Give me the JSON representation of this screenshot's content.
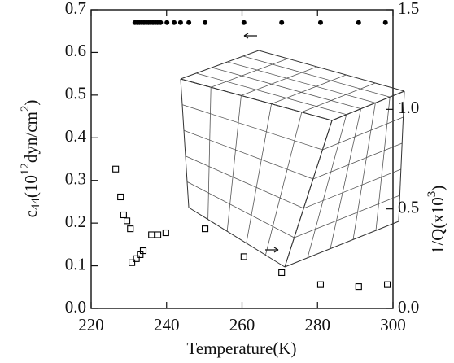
{
  "chart_data": {
    "type": "scatter",
    "xlabel": "Temperature(K)",
    "ylabel_parts": [
      "c",
      "44",
      "(10",
      "12",
      "dyn/cm",
      "2",
      ")"
    ],
    "y2label_parts": [
      "1/Q(x10",
      "3",
      ")"
    ],
    "xlim": [
      220,
      300
    ],
    "xticks": [
      220,
      240,
      260,
      280,
      300
    ],
    "ylim": [
      0,
      0.7
    ],
    "yticks": [
      {
        "value": 0,
        "label": "0.0"
      },
      {
        "value": 0.1,
        "label": "0.1"
      },
      {
        "value": 0.2,
        "label": "0.2"
      },
      {
        "value": 0.3,
        "label": "0.3"
      },
      {
        "value": 0.4,
        "label": "0.4"
      },
      {
        "value": 0.5,
        "label": "0.5"
      },
      {
        "value": 0.6,
        "label": "0.6"
      },
      {
        "value": 0.7,
        "label": "0.7"
      }
    ],
    "y2lim": [
      0,
      1.5
    ],
    "y2ticks": [
      {
        "value": 0,
        "label": "0.0"
      },
      {
        "value": 0.5,
        "label": "0.5"
      },
      {
        "value": 1,
        "label": "1.0"
      },
      {
        "value": 1.5,
        "label": "1.5"
      }
    ],
    "grid": false,
    "series": [
      {
        "marker": "filled-circle",
        "color": "#000000",
        "x": [
          231.6,
          232.2,
          232.8,
          233.4,
          234.0,
          234.6,
          235.2,
          235.8,
          236.4,
          237.0,
          237.6,
          238.4,
          240.1,
          242.0,
          243.7,
          245.9,
          250.2,
          260.5,
          270.5,
          280.8,
          290.9,
          298.0
        ],
        "values": [
          0.67,
          0.67,
          0.67,
          0.67,
          0.67,
          0.67,
          0.67,
          0.67,
          0.67,
          0.67,
          0.67,
          0.67,
          0.67,
          0.67,
          0.67,
          0.67,
          0.67,
          0.67,
          0.67,
          0.67,
          0.67,
          0.67
        ]
      },
      {
        "marker": "open-square",
        "color": "#000000",
        "axis": "y2",
        "x": [
          226.5,
          227.8,
          228.6,
          229.5,
          230.4,
          230.8,
          232.0,
          233.0,
          233.8,
          236.0,
          237.7,
          239.8,
          250.2,
          260.5,
          270.5,
          280.8,
          290.9,
          298.5
        ],
        "values": [
          0.7,
          0.56,
          0.47,
          0.44,
          0.4,
          0.23,
          0.25,
          0.27,
          0.29,
          0.37,
          0.37,
          0.38,
          0.4,
          0.26,
          0.18,
          0.12,
          0.11,
          0.12
        ]
      }
    ]
  }
}
